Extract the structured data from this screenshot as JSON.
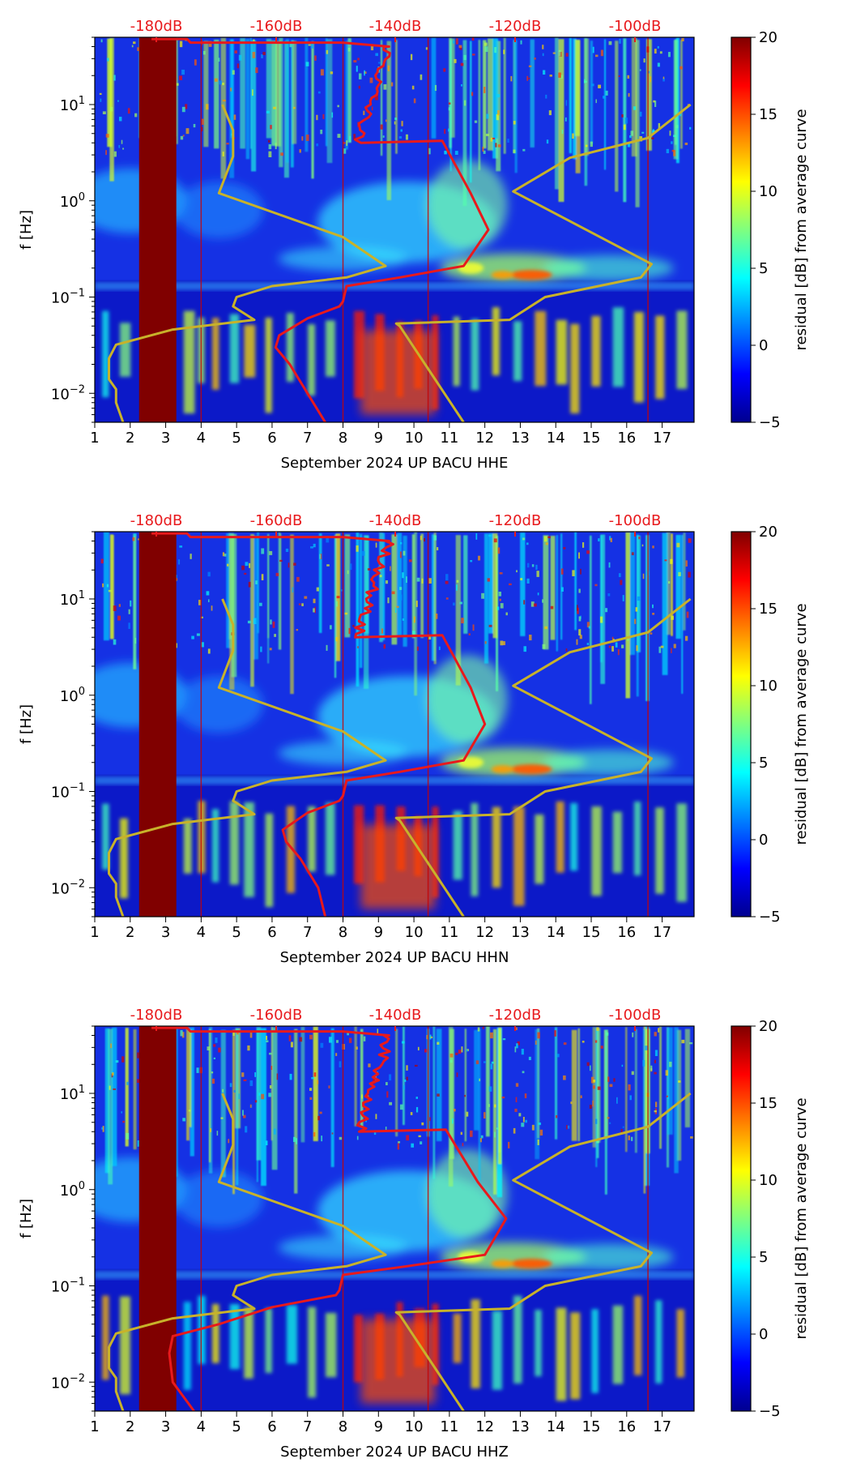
{
  "chart_data": [
    {
      "type": "heatmap",
      "xlabel": "September 2024 UP BACU  HHE",
      "ylabel": "f [Hz]",
      "x_ticks": [
        "1",
        "2",
        "3",
        "4",
        "5",
        "6",
        "7",
        "8",
        "9",
        "10",
        "11",
        "12",
        "13",
        "14",
        "15",
        "16",
        "17"
      ],
      "xlim": [
        1,
        17.9
      ],
      "ylim": [
        0.005,
        50
      ],
      "y_scale": "log",
      "y_ticks": [
        "10^-2",
        "10^-1",
        "10^0",
        "10^1"
      ],
      "top_axis_ticks": [
        "-180dB",
        "-160dB",
        "-140dB",
        "-120dB",
        "-100dB"
      ],
      "top_axis_values": [
        -180,
        -160,
        -140,
        -120,
        -100
      ],
      "colorbar": {
        "label": "residual [dB] from average curve",
        "range": [
          -5,
          20
        ],
        "ticks": [
          "20",
          "15",
          "10",
          "5",
          "0",
          "−5"
        ]
      },
      "red_curve": {
        "x": [
          2.6,
          3.0,
          3.6,
          3.7,
          4.2,
          6.0,
          7.5,
          8.0,
          9.3,
          10.8,
          11.6,
          12.1,
          11.4,
          9.6,
          8.1,
          8.0,
          7.9,
          7.0,
          6.2,
          6.1,
          6.5,
          7.0,
          7.5
        ],
        "y": [
          48,
          48,
          48,
          44,
          44,
          44,
          44,
          44,
          40,
          4.2,
          1.2,
          0.5,
          0.21,
          0.16,
          0.13,
          0.09,
          0.08,
          0.06,
          0.04,
          0.03,
          0.02,
          0.01,
          0.005
        ]
      },
      "yellow_curves": [
        {
          "x": [
            1.8,
            1.6,
            1.6,
            1.4,
            1.4,
            1.6,
            3.2,
            5.5,
            4.9,
            5.0,
            6.0,
            8.1,
            9.2,
            8.0,
            4.5,
            4.9,
            4.9,
            4.6
          ],
          "y": [
            0.005,
            0.008,
            0.011,
            0.014,
            0.023,
            0.032,
            0.046,
            0.058,
            0.08,
            0.1,
            0.13,
            0.16,
            0.21,
            0.42,
            1.2,
            2.9,
            5.4,
            10
          ]
        },
        {
          "x": [
            11.4,
            9.6,
            9.5,
            12.7,
            13.7,
            16.4,
            16.7,
            12.8,
            14.4,
            16.6,
            17.8
          ],
          "y": [
            0.005,
            0.05,
            0.053,
            0.058,
            0.1,
            0.16,
            0.22,
            1.25,
            2.8,
            4.5,
            10
          ]
        }
      ]
    },
    {
      "type": "heatmap",
      "xlabel": "September 2024 UP BACU  HHN",
      "ylabel": "f [Hz]",
      "x_ticks": [
        "1",
        "2",
        "3",
        "4",
        "5",
        "6",
        "7",
        "8",
        "9",
        "10",
        "11",
        "12",
        "13",
        "14",
        "15",
        "16",
        "17"
      ],
      "xlim": [
        1,
        17.9
      ],
      "ylim": [
        0.005,
        50
      ],
      "y_scale": "log",
      "y_ticks": [
        "10^-2",
        "10^-1",
        "10^0",
        "10^1"
      ],
      "top_axis_ticks": [
        "-180dB",
        "-160dB",
        "-140dB",
        "-120dB",
        "-100dB"
      ],
      "top_axis_values": [
        -180,
        -160,
        -140,
        -120,
        -100
      ],
      "colorbar": {
        "label": "residual [dB] from average curve",
        "range": [
          -5,
          20
        ],
        "ticks": [
          "20",
          "15",
          "10",
          "5",
          "0",
          "−5"
        ]
      },
      "red_curve": {
        "x": [
          2.6,
          3.0,
          3.6,
          3.7,
          4.2,
          6.0,
          7.5,
          8.0,
          9.3,
          10.8,
          11.6,
          12.0,
          11.4,
          9.6,
          8.1,
          8.0,
          7.9,
          7.0,
          6.3,
          6.4,
          6.8,
          7.3,
          7.5
        ],
        "y": [
          48,
          48,
          48,
          44,
          44,
          44,
          44,
          44,
          40,
          4.2,
          1.2,
          0.5,
          0.21,
          0.16,
          0.13,
          0.09,
          0.08,
          0.06,
          0.04,
          0.03,
          0.02,
          0.01,
          0.005
        ]
      },
      "yellow_curves": [
        {
          "x": [
            1.8,
            1.6,
            1.6,
            1.4,
            1.4,
            1.6,
            3.2,
            5.5,
            4.9,
            5.0,
            6.0,
            8.1,
            9.2,
            8.0,
            4.5,
            4.9,
            4.9,
            4.6
          ],
          "y": [
            0.005,
            0.008,
            0.011,
            0.014,
            0.023,
            0.032,
            0.046,
            0.058,
            0.08,
            0.1,
            0.13,
            0.16,
            0.21,
            0.42,
            1.2,
            2.9,
            5.4,
            10
          ]
        },
        {
          "x": [
            11.4,
            9.6,
            9.5,
            12.7,
            13.7,
            16.4,
            16.7,
            12.8,
            14.4,
            16.6,
            17.8
          ],
          "y": [
            0.005,
            0.05,
            0.053,
            0.058,
            0.1,
            0.16,
            0.22,
            1.25,
            2.8,
            4.5,
            10
          ]
        }
      ]
    },
    {
      "type": "heatmap",
      "xlabel": "September 2024 UP BACU  HHZ",
      "ylabel": "f [Hz]",
      "x_ticks": [
        "1",
        "2",
        "3",
        "4",
        "5",
        "6",
        "7",
        "8",
        "9",
        "10",
        "11",
        "12",
        "13",
        "14",
        "15",
        "16",
        "17"
      ],
      "xlim": [
        1,
        17.9
      ],
      "ylim": [
        0.005,
        50
      ],
      "y_scale": "log",
      "y_ticks": [
        "10^-2",
        "10^-1",
        "10^0",
        "10^1"
      ],
      "top_axis_ticks": [
        "-180dB",
        "-160dB",
        "-140dB",
        "-120dB",
        "-100dB"
      ],
      "top_axis_values": [
        -180,
        -160,
        -140,
        -120,
        -100
      ],
      "colorbar": {
        "label": "residual [dB] from average curve",
        "range": [
          -5,
          20
        ],
        "ticks": [
          "20",
          "15",
          "10",
          "5",
          "0",
          "−5"
        ]
      },
      "red_curve": {
        "x": [
          2.6,
          3.0,
          3.6,
          3.7,
          4.2,
          6.0,
          7.5,
          8.0,
          9.3,
          10.9,
          11.8,
          12.6,
          12.0,
          9.8,
          8.0,
          7.9,
          7.8,
          6.0,
          4.5,
          3.2,
          3.1,
          3.2,
          3.8
        ],
        "y": [
          48,
          48,
          48,
          44,
          44,
          44,
          44,
          44,
          40,
          4.2,
          1.2,
          0.5,
          0.21,
          0.16,
          0.13,
          0.09,
          0.08,
          0.06,
          0.04,
          0.03,
          0.02,
          0.01,
          0.005
        ]
      },
      "yellow_curves": [
        {
          "x": [
            1.8,
            1.6,
            1.6,
            1.4,
            1.4,
            1.6,
            3.2,
            5.5,
            4.9,
            5.0,
            6.0,
            8.1,
            9.2,
            8.0,
            4.5,
            4.9,
            4.9,
            4.6
          ],
          "y": [
            0.005,
            0.008,
            0.011,
            0.014,
            0.023,
            0.032,
            0.046,
            0.058,
            0.08,
            0.1,
            0.13,
            0.16,
            0.21,
            0.42,
            1.2,
            2.9,
            5.4,
            10
          ]
        },
        {
          "x": [
            11.4,
            9.6,
            9.5,
            12.7,
            13.7,
            16.4,
            16.7,
            12.8,
            14.4,
            16.6,
            17.8
          ],
          "y": [
            0.005,
            0.05,
            0.053,
            0.058,
            0.1,
            0.16,
            0.22,
            1.25,
            2.8,
            4.5,
            10
          ]
        }
      ]
    }
  ]
}
